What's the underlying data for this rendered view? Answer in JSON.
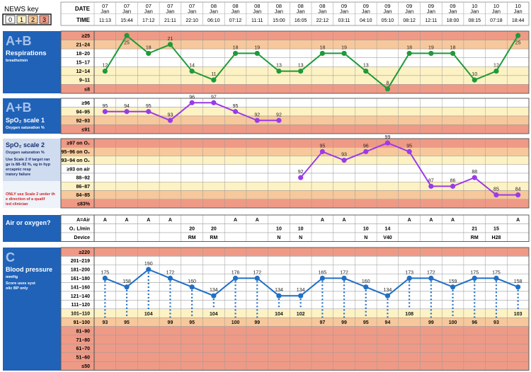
{
  "news_key": {
    "title": "NEWS key",
    "scores": [
      "0",
      "1",
      "2",
      "3"
    ],
    "colors": {
      "0": "#ffffff",
      "1": "#fdf2c4",
      "2": "#f7c89b",
      "3": "#ef9a86"
    }
  },
  "colors": {
    "header_blue": "#1f62b8",
    "resp_line": "#1f9a3a",
    "spo2_line": "#9b3be8",
    "bp_line": "#1f6fc6",
    "grid": "#9a9a9a"
  },
  "header": {
    "date_label": "DATE",
    "time_label": "TIME",
    "dates": [
      "07 Jan",
      "07 Jan",
      "07 Jan",
      "07 Jan",
      "07 Jan",
      "08 Jan",
      "08 Jan",
      "08 Jan",
      "08 Jan",
      "08 Jan",
      "08 Jan",
      "09 Jan",
      "09 Jan",
      "09 Jan",
      "09 Jan",
      "09 Jan",
      "09 Jan",
      "10 Jan",
      "10 Jan",
      "10 Jan"
    ],
    "times": [
      "11:13",
      "15:44",
      "17:12",
      "21:11",
      "22:10",
      "06:10",
      "07:12",
      "11:11",
      "15:00",
      "16:05",
      "22:12",
      "03:11",
      "04:10",
      "05:10",
      "08:12",
      "12:11",
      "18:00",
      "08:15",
      "07:18",
      "18:44"
    ]
  },
  "sections": {
    "resp_letters": "A+B",
    "resp_title": "Respirations",
    "resp_sub": "breaths/min",
    "spo2_1_letters": "A+B",
    "spo2_1_title": "SpO₂ scale 1",
    "spo2_1_sub": "Oxygen saturation %",
    "spo2_2_title": "SpO₂ scale 2",
    "spo2_2_sub": "Oxygen saturation %",
    "spo2_2_note": "Use Scale 2 if target range is 88–92 %, eg in hypercapnic respiratory failure",
    "spo2_2_warn": "ONLY use Scale 2 under the direction of a qualified clinician",
    "air_title": "Air or oxygen?",
    "bp_letters": "C",
    "bp_title": "Blood pressure",
    "bp_sub": "mmHg",
    "bp_note": "Score uses systolic BP only"
  },
  "chart_data": [
    {
      "type": "line",
      "title": "Respirations",
      "ylabel": "breaths/min",
      "row_labels": [
        "≥25",
        "21–24",
        "18–20",
        "15–17",
        "12–14",
        "9–11",
        "≤8"
      ],
      "x": [
        "07 Jan 11:13",
        "07 Jan 15:44",
        "07 Jan 17:12",
        "07 Jan 21:11",
        "07 Jan 22:10",
        "08 Jan 06:10",
        "08 Jan 07:12",
        "08 Jan 11:11",
        "08 Jan 15:00",
        "08 Jan 16:05",
        "08 Jan 22:12",
        "09 Jan 03:11",
        "09 Jan 04:10",
        "09 Jan 05:10",
        "09 Jan 08:12",
        "09 Jan 12:11",
        "09 Jan 18:00",
        "10 Jan 08:15",
        "10 Jan 07:18",
        "10 Jan 18:44"
      ],
      "values": [
        12,
        25,
        18,
        21,
        14,
        11,
        18,
        19,
        13,
        13,
        18,
        19,
        13,
        8,
        18,
        19,
        18,
        10,
        12,
        25
      ]
    },
    {
      "type": "line",
      "title": "SpO₂ scale 1",
      "ylabel": "Oxygen saturation %",
      "row_labels": [
        "≥96",
        "94–95",
        "92–93",
        "≤91"
      ],
      "values": [
        95,
        94,
        95,
        93,
        96,
        97,
        95,
        92,
        92,
        null,
        null,
        null,
        null,
        null,
        null,
        null,
        null,
        null,
        null,
        null
      ]
    },
    {
      "type": "line",
      "title": "SpO₂ scale 2",
      "ylabel": "Oxygen saturation %",
      "row_labels": [
        "≥97 on O₂",
        "95–96 on O₂",
        "93–94 on O₂",
        "≥93 on air",
        "88–92",
        "86–87",
        "84–85",
        "≤83%"
      ],
      "values": [
        null,
        null,
        null,
        null,
        null,
        null,
        null,
        null,
        null,
        92,
        95,
        93,
        96,
        99,
        95,
        87,
        86,
        88,
        85,
        84
      ]
    },
    {
      "type": "table",
      "title": "Air or oxygen?",
      "row_labels": [
        "A=Air",
        "O₂ L/min",
        "Device"
      ],
      "air": [
        "A",
        "A",
        "A",
        "A",
        "",
        "",
        "A",
        "A",
        "",
        "",
        "A",
        "A",
        "",
        "",
        "A",
        "A",
        "A",
        "",
        "",
        "A"
      ],
      "o2_lpm": [
        "",
        "",
        "",
        "",
        "20",
        "20",
        "",
        "",
        "10",
        "10",
        "",
        "",
        "10",
        "14",
        "",
        "",
        "",
        "21",
        "15",
        ""
      ],
      "device": [
        "",
        "",
        "",
        "",
        "RM",
        "RM",
        "",
        "",
        "N",
        "N",
        "",
        "",
        "N",
        "V40",
        "",
        "",
        "",
        "RM",
        "H28",
        ""
      ]
    },
    {
      "type": "line",
      "title": "Blood pressure",
      "ylabel": "mmHg",
      "row_labels": [
        "≥220",
        "201–219",
        "181–200",
        "161–180",
        "141–160",
        "121–140",
        "111–120",
        "101–110",
        "91–100",
        "81–90",
        "71–80",
        "61–70",
        "51–60",
        "≤50"
      ],
      "systolic": [
        175,
        158,
        190,
        172,
        160,
        134,
        176,
        172,
        134,
        134,
        165,
        172,
        160,
        134,
        173,
        172,
        159,
        175,
        175,
        158
      ],
      "diastolic": [
        93,
        95,
        104,
        99,
        95,
        104,
        100,
        99,
        104,
        102,
        97,
        99,
        95,
        94,
        108,
        99,
        100,
        96,
        93,
        103
      ]
    }
  ]
}
